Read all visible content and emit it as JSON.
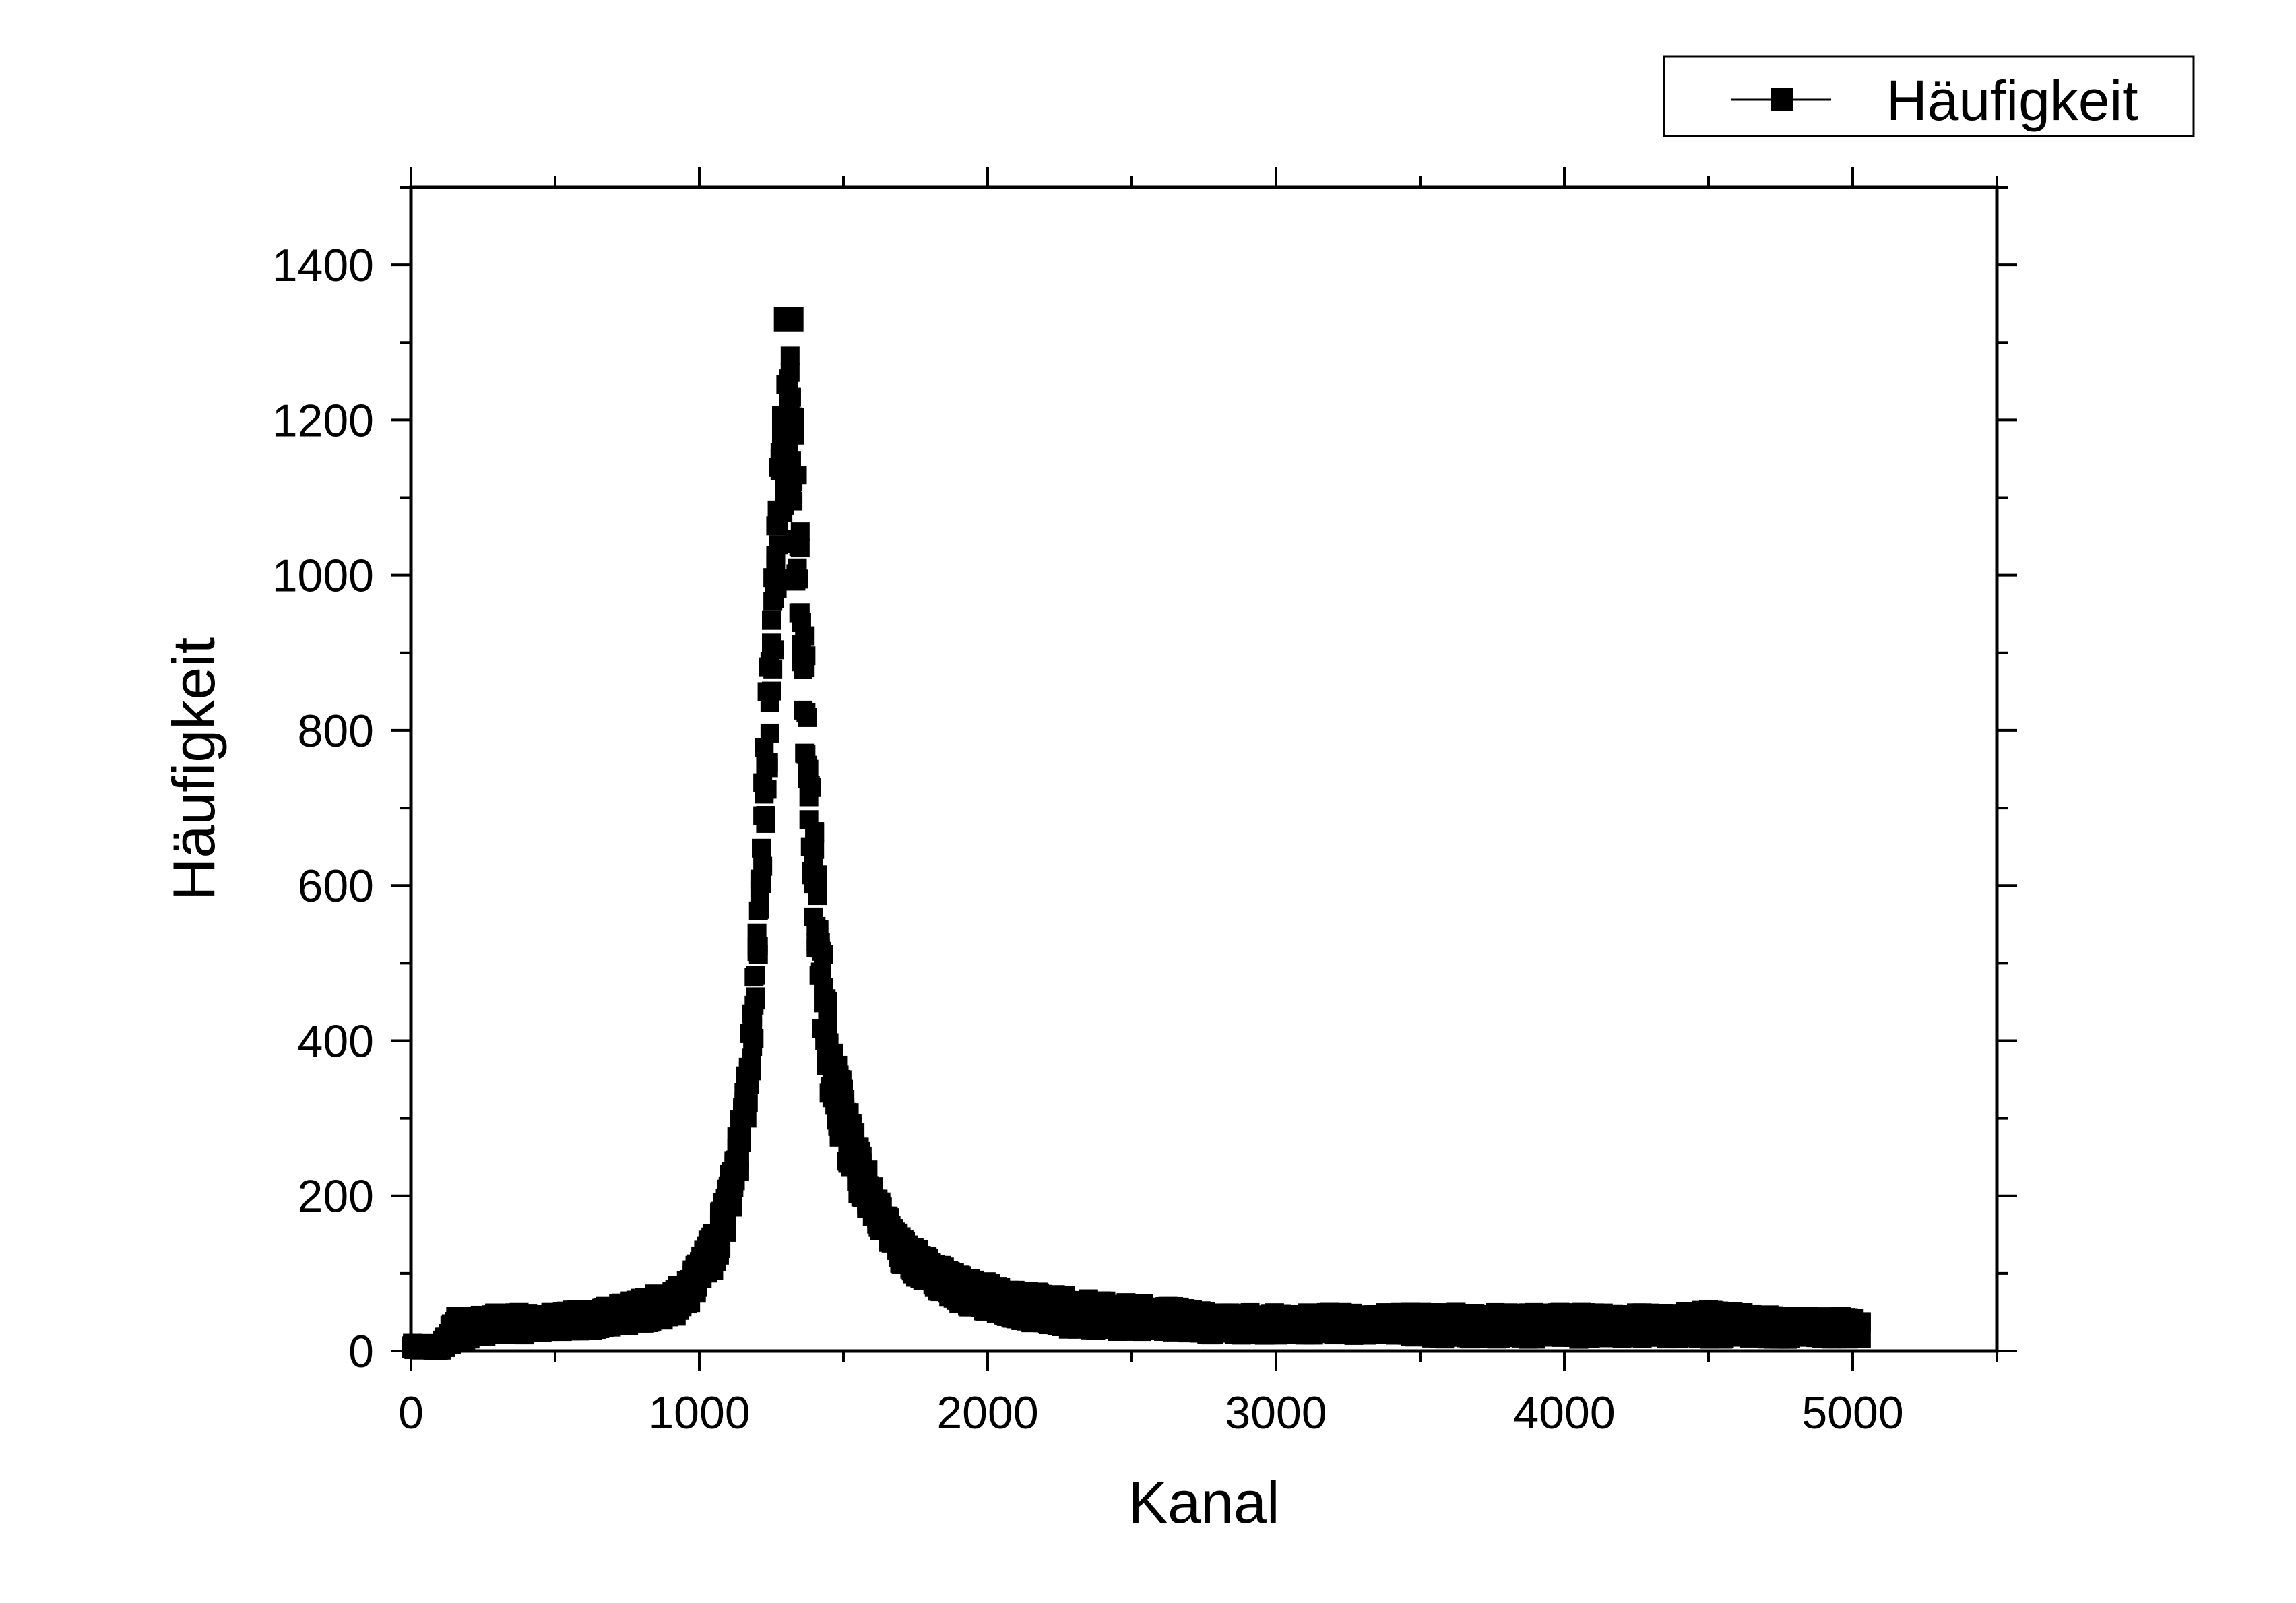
{
  "chart_data": {
    "type": "scatter",
    "xlabel": "Kanal",
    "ylabel": "Häufigkeit",
    "xlim": [
      0,
      5500
    ],
    "ylim": [
      0,
      1500
    ],
    "xticks": [
      0,
      1000,
      2000,
      3000,
      4000,
      5000
    ],
    "yticks": [
      0,
      200,
      400,
      600,
      800,
      1000,
      1200,
      1400
    ],
    "legend": {
      "position": "top-right",
      "entries": [
        "Häufigkeit"
      ]
    },
    "grid": false,
    "colors": {
      "series": "#000000",
      "axes": "#000000",
      "background": "#ffffff"
    },
    "series": [
      {
        "name": "Häufigkeit",
        "marker": "square",
        "line": true,
        "x": [
          0,
          100,
          150,
          200,
          300,
          400,
          500,
          600,
          700,
          800,
          900,
          950,
          1000,
          1050,
          1100,
          1150,
          1180,
          1200,
          1220,
          1240,
          1260,
          1280,
          1300,
          1310,
          1320,
          1340,
          1360,
          1380,
          1400,
          1420,
          1450,
          1500,
          1550,
          1600,
          1650,
          1700,
          1800,
          1900,
          2000,
          2100,
          2200,
          2400,
          2600,
          2800,
          3000,
          3200,
          3400,
          3600,
          3800,
          4000,
          4200,
          4400,
          4500,
          4600,
          4800,
          5000,
          5030
        ],
        "y_low": [
          0,
          0,
          10,
          15,
          20,
          20,
          25,
          25,
          30,
          35,
          40,
          50,
          80,
          100,
          150,
          250,
          350,
          450,
          600,
          750,
          900,
          1050,
          1100,
          1150,
          1100,
          950,
          800,
          650,
          520,
          430,
          330,
          250,
          200,
          170,
          140,
          110,
          80,
          60,
          50,
          40,
          30,
          25,
          25,
          20,
          20,
          20,
          20,
          15,
          15,
          15,
          15,
          15,
          15,
          15,
          15,
          15,
          15
        ],
        "y_high": [
          10,
          10,
          45,
          45,
          50,
          50,
          50,
          55,
          60,
          70,
          80,
          90,
          120,
          160,
          220,
          320,
          450,
          580,
          750,
          900,
          1050,
          1200,
          1300,
          1330,
          1290,
          1150,
          980,
          820,
          680,
          560,
          440,
          340,
          270,
          220,
          180,
          150,
          120,
          100,
          90,
          80,
          75,
          65,
          60,
          50,
          50,
          50,
          50,
          50,
          50,
          50,
          50,
          50,
          55,
          50,
          45,
          45,
          40
        ]
      }
    ]
  }
}
